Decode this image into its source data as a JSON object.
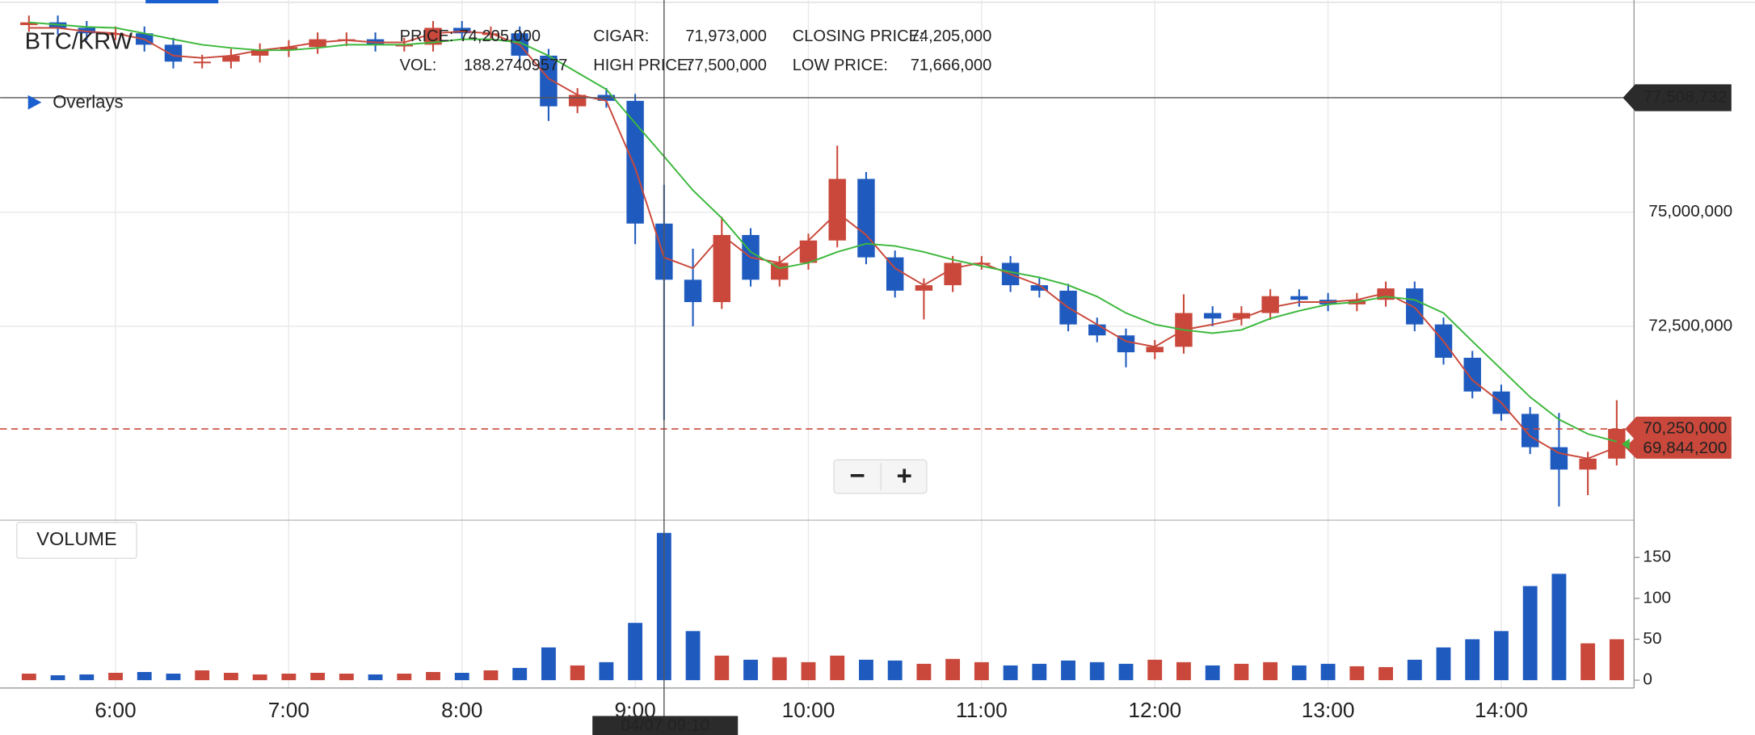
{
  "chart_data": {
    "type": "candlestick",
    "title": "BTC/KRW",
    "overlays_label": "Overlays",
    "info": [
      {
        "label": "PRICE:",
        "value": "74,205,000"
      },
      {
        "label": "VOL:",
        "value": "188.27409577"
      },
      {
        "label": "CIGAR:",
        "value": "71,973,000"
      },
      {
        "label": "HIGH PRICE:",
        "value": "77,500,000"
      },
      {
        "label": "CLOSING PRICE:",
        "value": "74,205,000"
      },
      {
        "label": "LOW PRICE:",
        "value": "71,666,000"
      }
    ],
    "up_color": "#c9483b",
    "down_color": "#1f5bbf",
    "x": [
      330,
      340,
      350,
      360,
      370,
      380,
      390,
      400,
      410,
      420,
      430,
      440,
      450,
      460,
      470,
      480,
      490,
      500,
      510,
      520,
      530,
      540,
      550,
      560,
      570,
      580,
      590,
      600,
      610,
      620,
      630,
      640,
      650,
      660,
      670,
      680,
      690,
      700,
      710,
      720,
      730,
      740,
      750,
      760,
      770,
      780,
      790,
      800,
      810,
      820,
      830,
      840,
      850,
      860,
      870,
      880
    ],
    "open": [
      79100000,
      79160000,
      79040000,
      78920000,
      78920000,
      78670000,
      78300000,
      78300000,
      78430000,
      78550000,
      78620000,
      78790000,
      78790000,
      78670000,
      78670000,
      79040000,
      78920000,
      78920000,
      78430000,
      77320000,
      77570000,
      77440000,
      74750000,
      73520000,
      73030000,
      74500000,
      73520000,
      73890000,
      74380000,
      75730000,
      74010000,
      73280000,
      73400000,
      73890000,
      73890000,
      73400000,
      73280000,
      72540000,
      72300000,
      71930000,
      72050000,
      72790000,
      72670000,
      72790000,
      73160000,
      73080000,
      72980000,
      73080000,
      73330000,
      72540000,
      71810000,
      71070000,
      70580000,
      69850000,
      69360000,
      69600000
    ],
    "high": [
      79310000,
      79310000,
      79190000,
      79070000,
      79070000,
      78820000,
      78450000,
      78580000,
      78700000,
      78770000,
      78940000,
      78940000,
      78940000,
      78820000,
      79190000,
      79190000,
      79070000,
      79070000,
      78580000,
      77720000,
      77720000,
      77590000,
      75600000,
      74200000,
      74900000,
      74650000,
      74040000,
      74530000,
      76460000,
      75880000,
      74160000,
      73550000,
      74040000,
      74040000,
      74040000,
      73550000,
      73430000,
      72690000,
      72450000,
      72200000,
      73200000,
      72940000,
      72940000,
      73310000,
      73310000,
      73230000,
      73230000,
      73480000,
      73480000,
      72690000,
      71960000,
      71220000,
      70730000,
      70600000,
      69750000,
      70880000
    ],
    "low": [
      78950000,
      78890000,
      78770000,
      78770000,
      78520000,
      78150000,
      78150000,
      78150000,
      78280000,
      78400000,
      78470000,
      78640000,
      78520000,
      78520000,
      78520000,
      78770000,
      78770000,
      78280000,
      77000000,
      77170000,
      77290000,
      74300000,
      70450000,
      72500000,
      72880000,
      73370000,
      73370000,
      73740000,
      74230000,
      73860000,
      73130000,
      72650000,
      73250000,
      73740000,
      73250000,
      73130000,
      72390000,
      72150000,
      71600000,
      71780000,
      71900000,
      72500000,
      72520000,
      72640000,
      72930000,
      72830000,
      72830000,
      72930000,
      72390000,
      71660000,
      70920000,
      70430000,
      69700000,
      68550000,
      68800000,
      69450000
    ],
    "close": [
      79160000,
      79040000,
      78920000,
      78920000,
      78670000,
      78300000,
      78300000,
      78430000,
      78550000,
      78620000,
      78790000,
      78790000,
      78670000,
      78670000,
      79040000,
      78920000,
      78920000,
      78430000,
      77320000,
      77570000,
      77440000,
      74750000,
      73520000,
      73030000,
      74500000,
      73520000,
      73890000,
      74380000,
      75730000,
      74010000,
      73280000,
      73400000,
      73890000,
      73890000,
      73400000,
      73280000,
      72540000,
      72300000,
      71930000,
      72050000,
      72790000,
      72670000,
      72790000,
      73160000,
      73080000,
      72980000,
      73080000,
      73330000,
      72540000,
      71810000,
      71070000,
      70580000,
      69850000,
      69360000,
      69600000,
      70250000
    ],
    "lines": [
      {
        "color": "#c9483b",
        "values": [
          79040000,
          79040000,
          78960000,
          78920000,
          78790000,
          78430000,
          78380000,
          78430000,
          78550000,
          78620000,
          78720000,
          78770000,
          78720000,
          78720000,
          78920000,
          78960000,
          78920000,
          78670000,
          77930000,
          77570000,
          77440000,
          75970000,
          74010000,
          73770000,
          74500000,
          74010000,
          73890000,
          74380000,
          74990000,
          74500000,
          73770000,
          73400000,
          73770000,
          73890000,
          73640000,
          73400000,
          72910000,
          72540000,
          72170000,
          72050000,
          72420000,
          72540000,
          72670000,
          72910000,
          73030000,
          73030000,
          73080000,
          73230000,
          72910000,
          72170000,
          71320000,
          70830000,
          70090000,
          69720000,
          69600000,
          69850000
        ]
      },
      {
        "color": "#3cb83c",
        "values": [
          79160000,
          79110000,
          79060000,
          79040000,
          78920000,
          78790000,
          78670000,
          78600000,
          78550000,
          78550000,
          78600000,
          78670000,
          78670000,
          78670000,
          78720000,
          78790000,
          78790000,
          78720000,
          78430000,
          78060000,
          77690000,
          76950000,
          76220000,
          75480000,
          74870000,
          74130000,
          73770000,
          73890000,
          74130000,
          74310000,
          74260000,
          74130000,
          73960000,
          73820000,
          73690000,
          73570000,
          73400000,
          73150000,
          72790000,
          72540000,
          72420000,
          72350000,
          72420000,
          72670000,
          72840000,
          72980000,
          73030000,
          73150000,
          73080000,
          72790000,
          72170000,
          71560000,
          70950000,
          70460000,
          70140000,
          69970000
        ]
      }
    ],
    "xlim": [
      320,
      886
    ],
    "xticks": [
      {
        "value": 360,
        "label": "6:00"
      },
      {
        "value": 420,
        "label": "7:00"
      },
      {
        "value": 480,
        "label": "8:00"
      },
      {
        "value": 540,
        "label": "9:00"
      },
      {
        "value": 600,
        "label": "10:00"
      },
      {
        "value": 660,
        "label": "11:00"
      },
      {
        "value": 720,
        "label": "12:00"
      },
      {
        "value": 780,
        "label": "13:00"
      },
      {
        "value": 840,
        "label": "14:00"
      }
    ],
    "ylim": [
      68250000,
      79650000
    ],
    "yticks": [
      {
        "value": 72500000,
        "label": "72,500,000"
      },
      {
        "value": 75000000,
        "label": "75,000,000"
      }
    ],
    "grid": true,
    "crosshair": {
      "x": {
        "value": 550,
        "label": "04/07 09:10"
      },
      "y": {
        "value": 77508732,
        "label": "77,508,732"
      }
    },
    "last_price": {
      "value": 70250000,
      "label": "70,250,000"
    },
    "marker": {
      "value": 69844200,
      "label": "69,844,200"
    },
    "zoom": [
      "−",
      "+"
    ],
    "volume": {
      "label": "VOLUME",
      "values": [
        8,
        6,
        7,
        9,
        10,
        8,
        12,
        9,
        7,
        8,
        9,
        8,
        7,
        8,
        10,
        9,
        12,
        15,
        40,
        18,
        22,
        70,
        180,
        60,
        30,
        25,
        28,
        22,
        30,
        25,
        24,
        20,
        26,
        22,
        18,
        20,
        24,
        22,
        20,
        25,
        22,
        18,
        20,
        22,
        18,
        20,
        17,
        16,
        25,
        40,
        50,
        60,
        115,
        130,
        45,
        50
      ],
      "ylim": [
        0,
        190
      ],
      "yticks": [
        0,
        50,
        100,
        150
      ]
    }
  }
}
